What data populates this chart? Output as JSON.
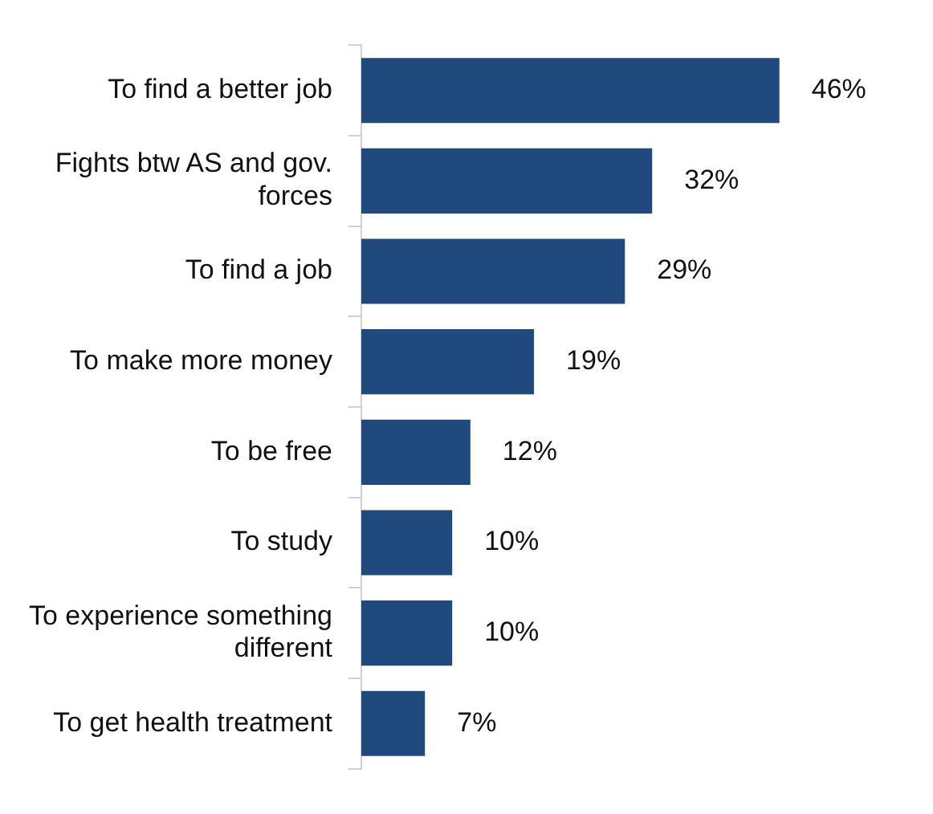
{
  "chart_data": {
    "type": "bar",
    "orientation": "horizontal",
    "categories": [
      "To find a better job",
      "Fights btw AS and gov. forces",
      "To find a job",
      "To make more money",
      "To be free",
      "To study",
      "To experience something different",
      "To get health treatment"
    ],
    "values": [
      46,
      32,
      29,
      19,
      12,
      10,
      10,
      7
    ],
    "color": "#204a7e",
    "value_labels": [
      "46%",
      "32%",
      "29%",
      "19%",
      "12%",
      "10%",
      "10%",
      "7%"
    ]
  }
}
